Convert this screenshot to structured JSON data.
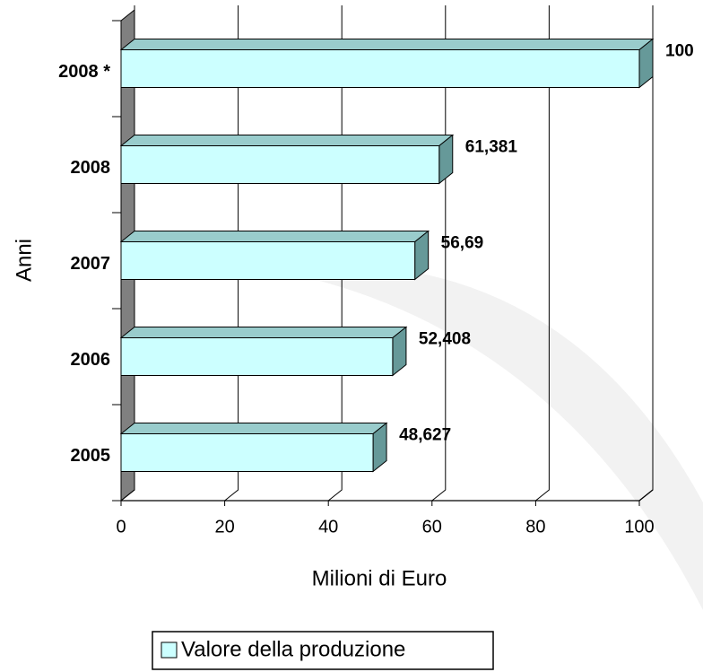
{
  "chart_data": {
    "type": "bar3d_horizontal",
    "categories": [
      "2008 *",
      "2008",
      "2007",
      "2006",
      "2005"
    ],
    "values": [
      100,
      61.381,
      56.69,
      52.408,
      48.627
    ],
    "value_labels": [
      "100",
      "61,381",
      "56,69",
      "52,408",
      "48,627"
    ],
    "series_name": "Valore della produzione",
    "color": "#ccffff",
    "xlabel": "Milioni di Euro",
    "ylabel": "Anni",
    "xlim": [
      0,
      100
    ],
    "xticks": [
      0,
      20,
      40,
      60,
      80,
      100
    ],
    "grid": true
  }
}
